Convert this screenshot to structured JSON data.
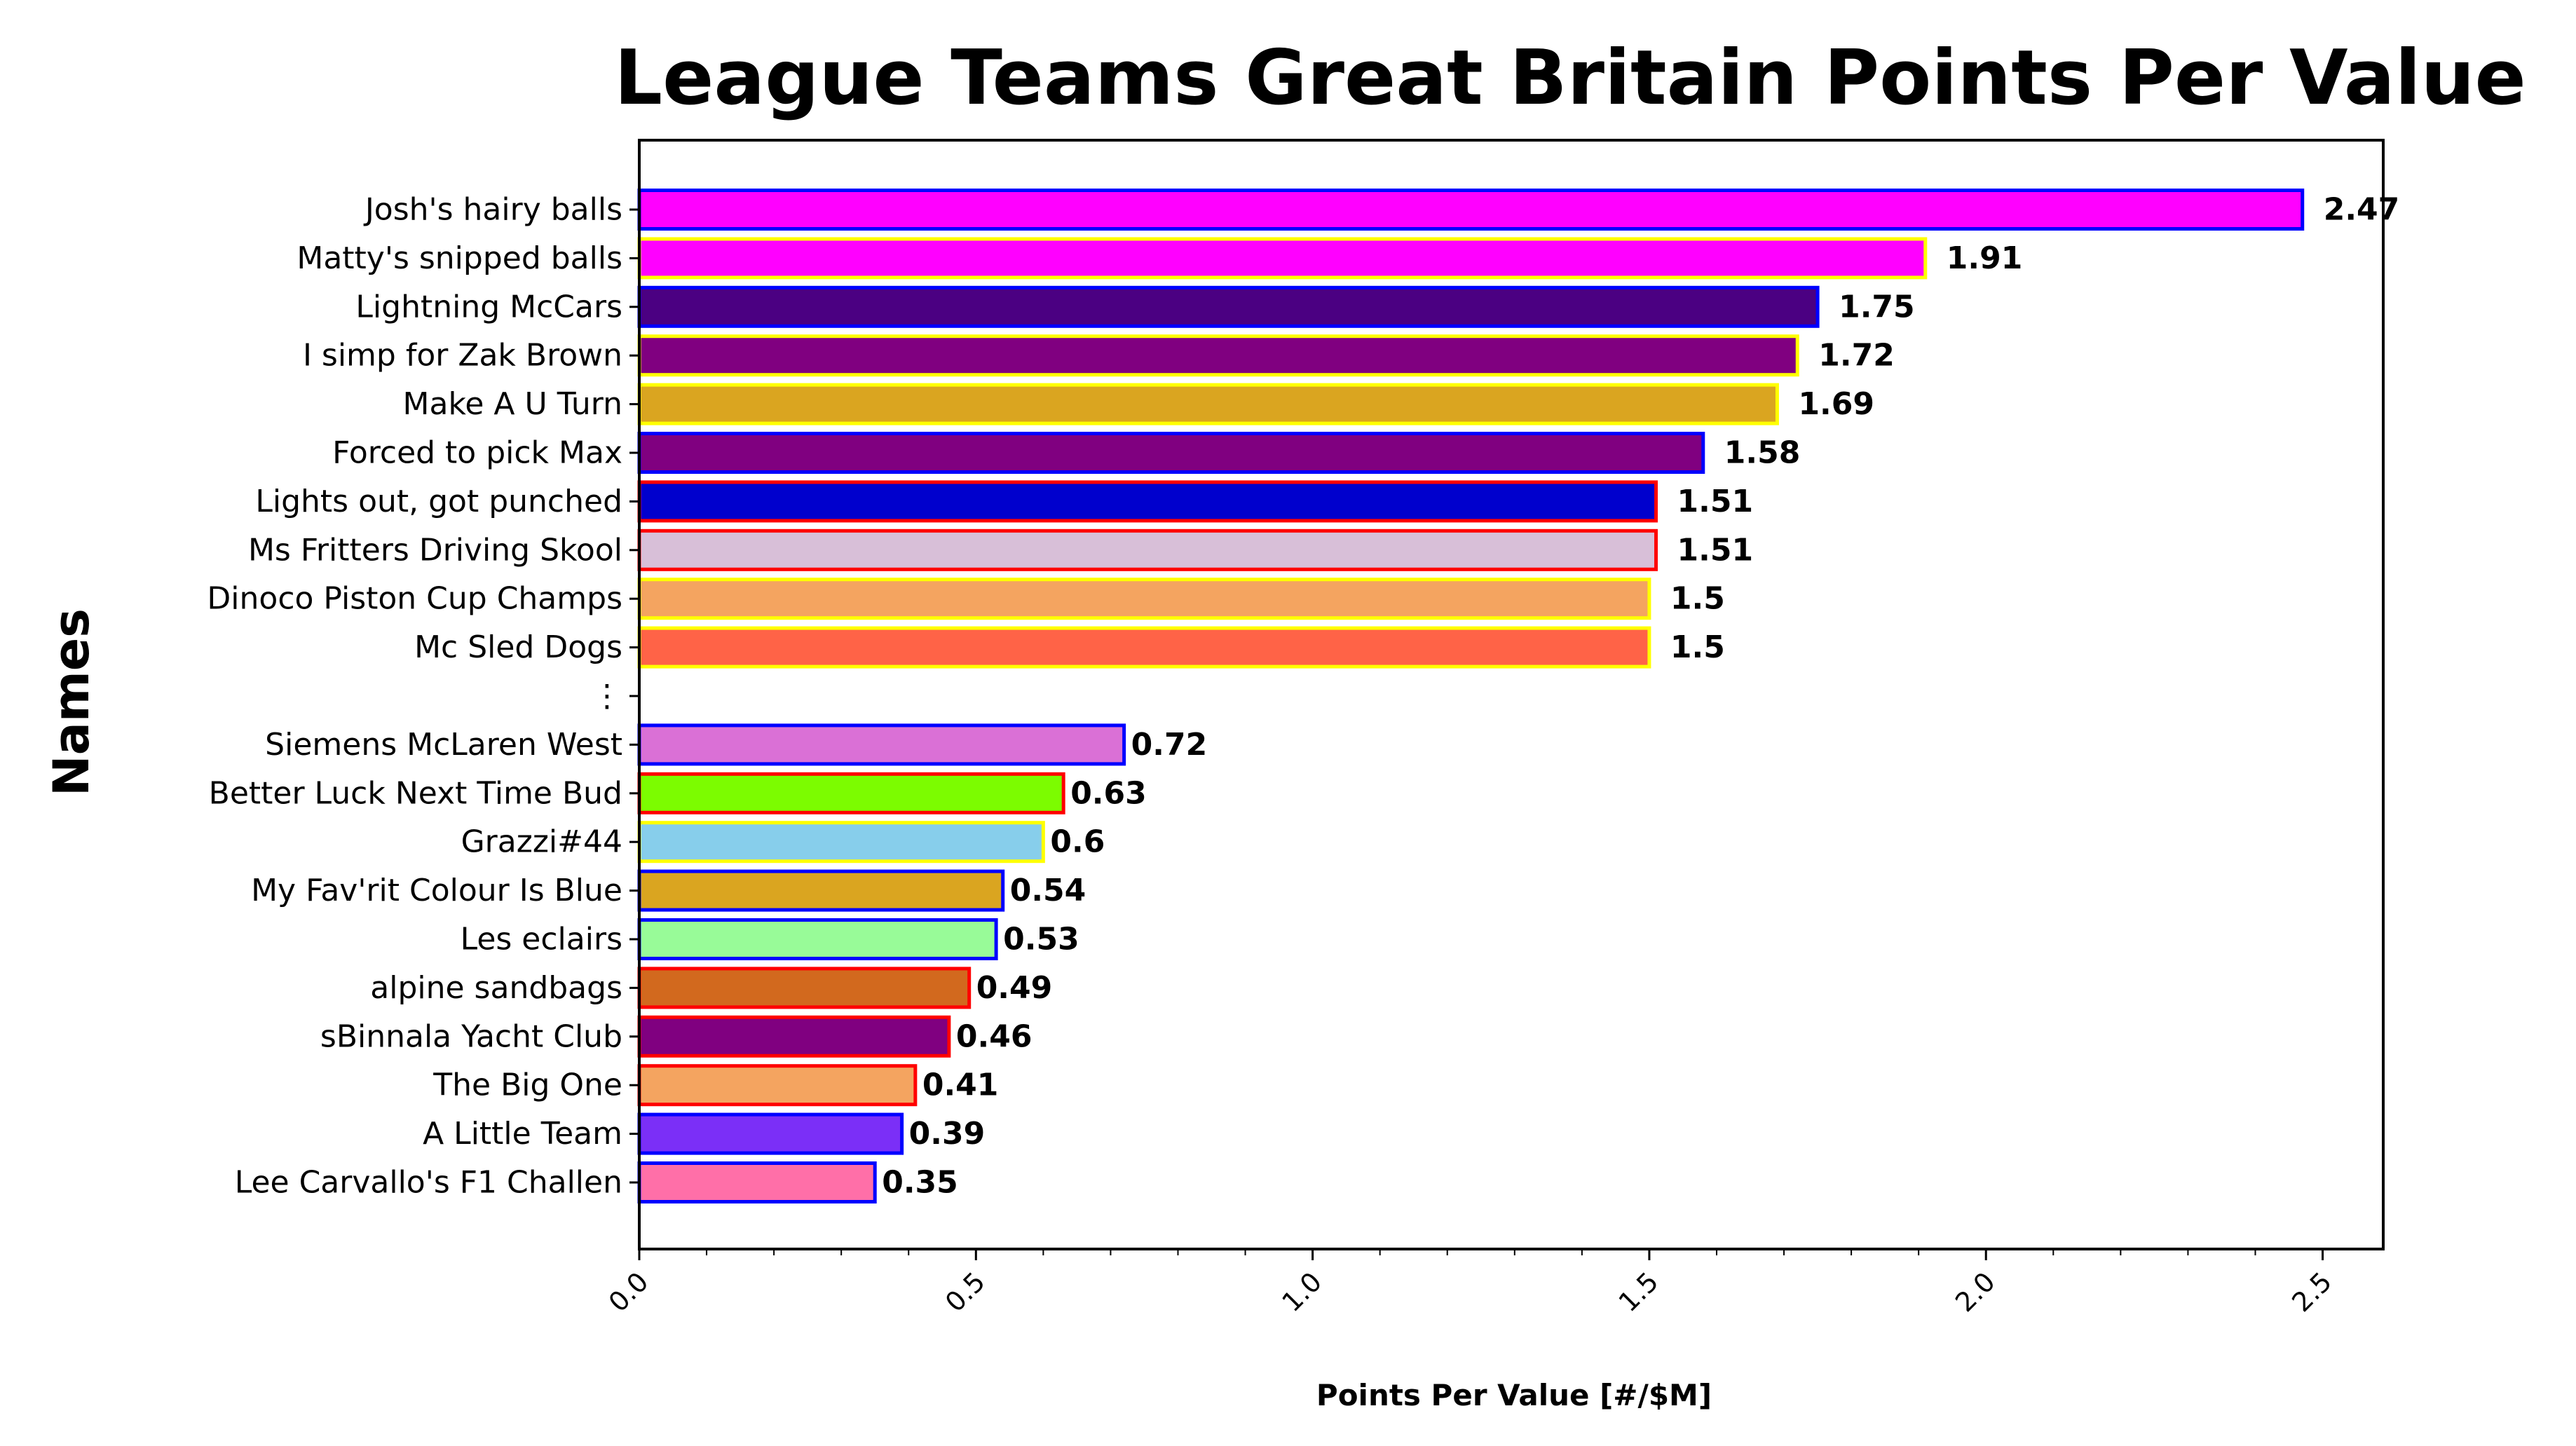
{
  "chart_data": {
    "type": "bar",
    "orientation": "horizontal",
    "title": "League Teams Great Britain Points Per Value",
    "xlabel": "Points Per Value [#/$M]",
    "ylabel": "Names",
    "xlim": [
      0,
      2.59
    ],
    "xticks": [
      "0.0",
      "0.5",
      "1.0",
      "1.5",
      "2.0",
      "2.5"
    ],
    "xtick_values": [
      0,
      0.5,
      1.0,
      1.5,
      2.0,
      2.5
    ],
    "grid": false,
    "legend": "none",
    "categories": [
      "Josh's hairy balls",
      "Matty's snipped balls",
      "Lightning McCars",
      "I simp for Zak Brown",
      "Make A U Turn",
      "Forced to pick Max",
      "Lights out, got punched",
      "Ms Fritters Driving Skool",
      "Dinoco Piston Cup Champs",
      "Mc Sled Dogs",
      "⋮",
      "Siemens McLaren West",
      "Better Luck Next Time Bud",
      "Grazzi#44",
      "My Fav'rit Colour Is Blue",
      "Les eclairs",
      "alpine sandbags",
      "sBinnala Yacht Club",
      "The Big One",
      "A Little Team",
      "Lee Carvallo's F1 Challen"
    ],
    "values": [
      2.47,
      1.91,
      1.75,
      1.72,
      1.69,
      1.58,
      1.51,
      1.51,
      1.5,
      1.5,
      null,
      0.72,
      0.63,
      0.6,
      0.54,
      0.53,
      0.49,
      0.46,
      0.41,
      0.39,
      0.35
    ],
    "value_labels": [
      "2.47",
      "1.91",
      "1.75",
      "1.72",
      "1.69",
      "1.58",
      "1.51",
      "1.51",
      "1.5",
      "1.5",
      "",
      "0.72",
      "0.63",
      "0.6",
      "0.54",
      "0.53",
      "0.49",
      "0.46",
      "0.41",
      "0.39",
      "0.35"
    ],
    "fill_colors": [
      "#ff00ff",
      "#ff00ff",
      "#4b0082",
      "#800080",
      "#daa520",
      "#800080",
      "#0000cd",
      "#d8bfd8",
      "#f4a460",
      "#ff6347",
      null,
      "#da70d6",
      "#7cfc00",
      "#87ceeb",
      "#daa520",
      "#98fb98",
      "#d2691e",
      "#800080",
      "#f4a460",
      "#7b2ff7",
      "#ff6fa8"
    ],
    "edge_colors": [
      "#0000ff",
      "#ffff00",
      "#0000ff",
      "#ffff00",
      "#ffff00",
      "#0000ff",
      "#ff0000",
      "#ff0000",
      "#ffff00",
      "#ffff00",
      null,
      "#0000ff",
      "#ff0000",
      "#ffff00",
      "#0000ff",
      "#0000ff",
      "#ff0000",
      "#ff0000",
      "#ff0000",
      "#0000ff",
      "#0000ff"
    ]
  }
}
